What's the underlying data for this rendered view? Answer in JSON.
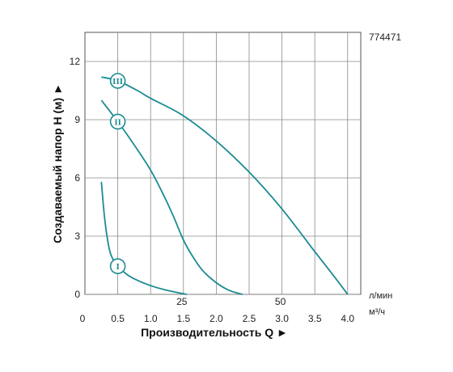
{
  "chart_data": {
    "type": "line",
    "code": "774471",
    "ylabel": "Создаваемый напор H (м) ►",
    "xlabel": "Производительность Q ►",
    "x_unit": "м³/ч",
    "x_secondary_unit": "л/мин",
    "xlim": [
      0,
      4.2
    ],
    "ylim": [
      0,
      13.5
    ],
    "x_ticks": [
      "0.5",
      "1.0",
      "1.5",
      "2.0",
      "2.5",
      "3.0",
      "3.5",
      "4.0"
    ],
    "x_tick_values": [
      0.5,
      1.0,
      1.5,
      2.0,
      2.5,
      3.0,
      3.5,
      4.0
    ],
    "x_zero_label": "0",
    "x_secondary_ticks": [
      "25",
      "50"
    ],
    "x_secondary_tick_values": [
      1.5,
      3.0
    ],
    "y_ticks": [
      "0",
      "3",
      "6",
      "9",
      "12"
    ],
    "y_tick_values": [
      0,
      3,
      6,
      9,
      12
    ],
    "grid": true,
    "line_color": "#1b8b92",
    "series": [
      {
        "name": "I",
        "x": [
          0.25,
          0.3,
          0.35,
          0.4,
          0.5,
          0.65,
          0.8,
          1.0,
          1.2,
          1.4,
          1.55
        ],
        "y": [
          5.8,
          3.9,
          2.7,
          2.0,
          1.45,
          1.0,
          0.72,
          0.45,
          0.25,
          0.1,
          0.0
        ],
        "marker_at": [
          0.5,
          1.45
        ]
      },
      {
        "name": "II",
        "x": [
          0.25,
          0.5,
          0.75,
          1.0,
          1.2,
          1.35,
          1.5,
          1.65,
          1.8,
          2.0,
          2.2,
          2.4
        ],
        "y": [
          10.0,
          8.9,
          7.7,
          6.4,
          5.1,
          4.0,
          2.8,
          1.9,
          1.2,
          0.6,
          0.2,
          0.0
        ],
        "marker_at": [
          0.5,
          8.9
        ]
      },
      {
        "name": "III",
        "x": [
          0.25,
          0.5,
          0.8,
          1.0,
          1.5,
          2.0,
          2.5,
          3.0,
          3.5,
          3.8,
          4.0
        ],
        "y": [
          11.2,
          11.0,
          10.5,
          10.1,
          9.2,
          7.9,
          6.3,
          4.4,
          2.2,
          0.9,
          0.0
        ],
        "marker_at": [
          0.5,
          11.0
        ]
      }
    ]
  }
}
